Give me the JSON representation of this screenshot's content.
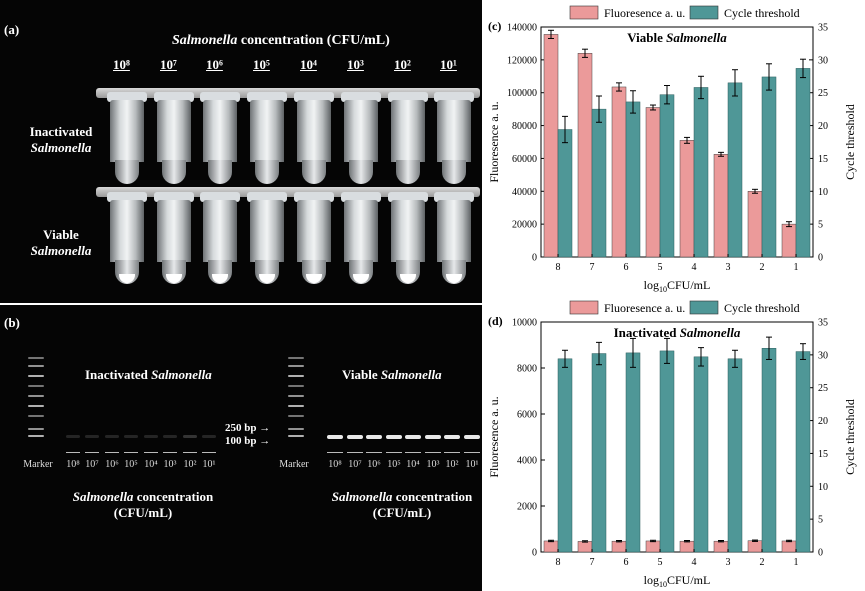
{
  "panel_labels": {
    "a": "(a)",
    "b": "(b)",
    "c": "(c)",
    "d": "(d)"
  },
  "panel_a": {
    "title_italic": "Salmonella",
    "title_rest": " concentration (CFU/mL)",
    "concentrations": [
      "10⁸",
      "10⁷",
      "10⁶",
      "10⁵",
      "10⁴",
      "10³",
      "10²",
      "10¹"
    ],
    "row1_line1": "Inactivated",
    "row1_line2": "Salmonella",
    "row2_line1": "Viable",
    "row2_line2": "Salmonella"
  },
  "panel_b": {
    "left_title_1": "Inactivated",
    "left_title_2": "Salmonella",
    "right_title_1": "Viable",
    "right_title_2": "Salmonella",
    "marker": "Marker",
    "bp_250": "250 bp",
    "bp_100": "100 bp",
    "lane_labels": [
      "10⁸",
      "10⁷",
      "10⁶",
      "10⁵",
      "10⁴",
      "10³",
      "10²",
      "10¹"
    ],
    "caption_italic": "Salmonella",
    "caption_rest": " concentration",
    "caption_unit": "(CFU/mL)",
    "colors": {
      "background": "#050505",
      "band": "#e9e9e9"
    }
  },
  "chart_data": [
    {
      "type": "bar",
      "title_plain": "Viable ",
      "title_italic": "Salmonella",
      "categories": [
        "8",
        "7",
        "6",
        "5",
        "4",
        "3",
        "2",
        "1"
      ],
      "xlabel": "log10CFU/mL",
      "ylabel": "Fluoresence a. u.",
      "y2label": "Cycle threshold",
      "ylim": [
        0,
        140000
      ],
      "y2lim": [
        0,
        35
      ],
      "yticks": [
        "0",
        "20000",
        "40000",
        "60000",
        "80000",
        "100000",
        "120000",
        "140000"
      ],
      "y2ticks": [
        "0",
        "5",
        "10",
        "15",
        "20",
        "25",
        "30",
        "35"
      ],
      "legend_position": "top",
      "series": [
        {
          "name": "Fluoresence a. u.",
          "axis": "left",
          "color": "#eb9a9a",
          "values": [
            135500,
            124000,
            103500,
            91000,
            71000,
            62500,
            40000,
            20000
          ],
          "errors": [
            2500,
            2500,
            2500,
            1500,
            1800,
            1200,
            1200,
            1500
          ]
        },
        {
          "name": "Cycle threshold",
          "axis": "right",
          "color": "#4f9797",
          "values": [
            19.4,
            22.5,
            23.6,
            24.7,
            25.8,
            26.5,
            27.4,
            28.7
          ],
          "errors": [
            2.0,
            2.0,
            1.7,
            1.4,
            1.7,
            2.0,
            2.0,
            1.4
          ]
        }
      ]
    },
    {
      "type": "bar",
      "title_plain": "Inactivated ",
      "title_italic": "Salmonella",
      "categories": [
        "8",
        "7",
        "6",
        "5",
        "4",
        "3",
        "2",
        "1"
      ],
      "xlabel": "log10CFU/mL",
      "ylabel": "Fluoresence a. u.",
      "y2label": "Cycle threshold",
      "ylim": [
        0,
        10000
      ],
      "y2lim": [
        0,
        35
      ],
      "yticks": [
        "0",
        "2000",
        "4000",
        "6000",
        "8000",
        "10000"
      ],
      "y2ticks": [
        "0",
        "5",
        "10",
        "15",
        "20",
        "25",
        "30",
        "35"
      ],
      "legend_position": "top",
      "series": [
        {
          "name": "Fluoresence a. u.",
          "axis": "left",
          "color": "#eb9a9a",
          "values": [
            480,
            460,
            470,
            480,
            470,
            470,
            490,
            480
          ],
          "errors": [
            30,
            30,
            30,
            30,
            30,
            30,
            30,
            30
          ]
        },
        {
          "name": "Cycle threshold",
          "axis": "right",
          "color": "#4f9797",
          "values": [
            29.4,
            30.2,
            30.3,
            30.6,
            29.7,
            29.4,
            31.0,
            30.5
          ],
          "errors": [
            1.3,
            1.7,
            2.2,
            1.9,
            1.4,
            1.3,
            1.7,
            1.2
          ]
        }
      ]
    }
  ]
}
